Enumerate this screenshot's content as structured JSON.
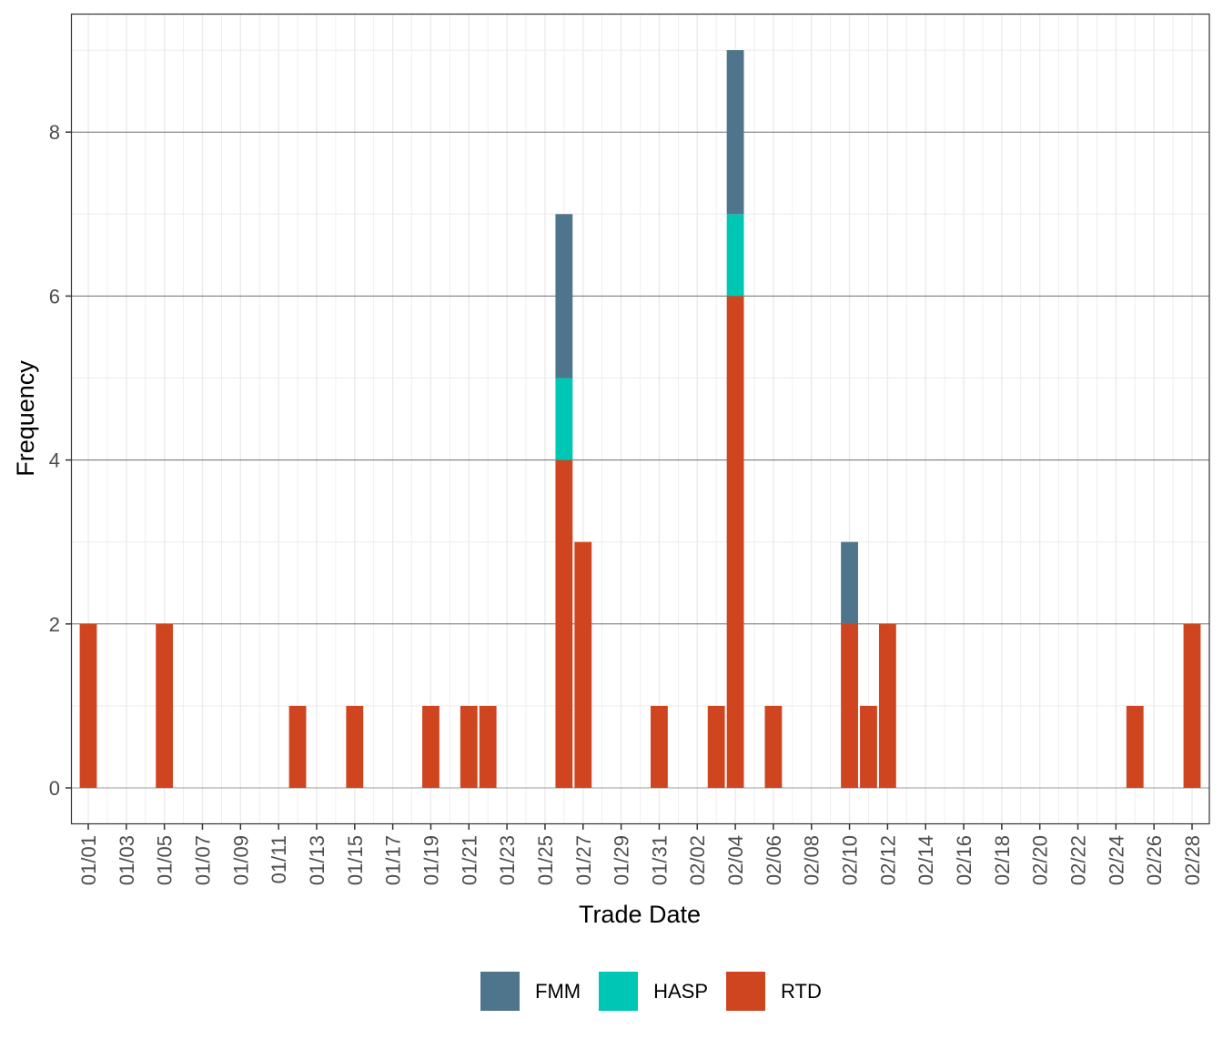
{
  "chart_data": {
    "type": "bar",
    "stacked": true,
    "title": "",
    "xlabel": "Trade Date",
    "ylabel": "Frequency",
    "ylim": [
      -0.4,
      9.45
    ],
    "yticks": [
      0,
      2,
      4,
      6,
      8
    ],
    "grid": true,
    "legend_position": "bottom",
    "x_tick_labels": [
      "01/01",
      "01/03",
      "01/05",
      "01/07",
      "01/09",
      "01/11",
      "01/13",
      "01/15",
      "01/17",
      "01/19",
      "01/21",
      "01/23",
      "01/25",
      "01/27",
      "01/29",
      "01/31",
      "02/02",
      "02/04",
      "02/06",
      "02/08",
      "02/10",
      "02/12",
      "02/14",
      "02/16",
      "02/18",
      "02/20",
      "02/22",
      "02/24",
      "02/26",
      "02/28"
    ],
    "categories": [
      "01/01",
      "01/05",
      "01/12",
      "01/15",
      "01/19",
      "01/21",
      "01/22",
      "01/26",
      "01/27",
      "01/31",
      "02/03",
      "02/04",
      "02/06",
      "02/10",
      "02/11",
      "02/12",
      "02/25",
      "02/28"
    ],
    "day_index": [
      0,
      4,
      11,
      14,
      18,
      20,
      21,
      25,
      26,
      30,
      33,
      34,
      36,
      40,
      41,
      42,
      55,
      58
    ],
    "series": [
      {
        "name": "FMM",
        "color": "#4e758b",
        "values": [
          0,
          0,
          0,
          0,
          0,
          0,
          0,
          2,
          0,
          0,
          0,
          2,
          0,
          1,
          0,
          0,
          0,
          0
        ]
      },
      {
        "name": "HASP",
        "color": "#00c7b4",
        "values": [
          0,
          0,
          0,
          0,
          0,
          0,
          0,
          1,
          0,
          0,
          0,
          1,
          0,
          0,
          0,
          0,
          0,
          0
        ]
      },
      {
        "name": "RTD",
        "color": "#cf4520",
        "values": [
          2,
          2,
          1,
          1,
          1,
          1,
          1,
          4,
          3,
          1,
          1,
          6,
          1,
          2,
          1,
          2,
          1,
          2
        ]
      }
    ]
  },
  "legend": {
    "items": [
      {
        "label": "FMM",
        "color": "#4e758b"
      },
      {
        "label": "HASP",
        "color": "#00c7b4"
      },
      {
        "label": "RTD",
        "color": "#cf4520"
      }
    ]
  }
}
